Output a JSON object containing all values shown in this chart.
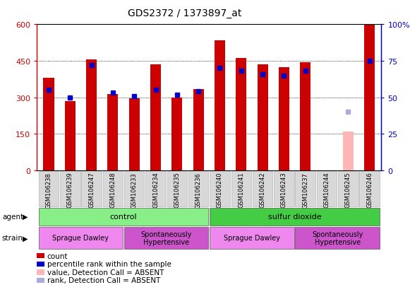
{
  "title": "GDS2372 / 1373897_at",
  "samples": [
    "GSM106238",
    "GSM106239",
    "GSM106247",
    "GSM106248",
    "GSM106233",
    "GSM106234",
    "GSM106235",
    "GSM106236",
    "GSM106240",
    "GSM106241",
    "GSM106242",
    "GSM106243",
    "GSM106237",
    "GSM106244",
    "GSM106245",
    "GSM106246"
  ],
  "count_values": [
    380,
    285,
    455,
    315,
    295,
    435,
    300,
    335,
    535,
    460,
    435,
    425,
    445,
    0,
    160,
    600
  ],
  "count_absent": [
    false,
    false,
    false,
    false,
    false,
    false,
    false,
    false,
    false,
    false,
    false,
    false,
    false,
    true,
    true,
    false
  ],
  "percentile_values": [
    55,
    50,
    72,
    53,
    51,
    55,
    52,
    54,
    70,
    68,
    66,
    65,
    68,
    0,
    40,
    75
  ],
  "percentile_absent": [
    false,
    false,
    false,
    false,
    false,
    false,
    false,
    false,
    false,
    false,
    false,
    false,
    false,
    false,
    true,
    false
  ],
  "count_color": "#CC0000",
  "count_absent_color": "#FFB6B6",
  "percentile_color": "#0000CC",
  "percentile_absent_color": "#AAAADD",
  "ylim_left": [
    0,
    600
  ],
  "ylim_right": [
    0,
    100
  ],
  "yticks_left": [
    0,
    150,
    300,
    450,
    600
  ],
  "yticks_right": [
    0,
    25,
    50,
    75,
    100
  ],
  "yticklabels_left": [
    "0",
    "150",
    "300",
    "450",
    "600"
  ],
  "yticklabels_right": [
    "0",
    "25",
    "50",
    "75",
    "100%"
  ],
  "groups": [
    {
      "label": "control",
      "start": 0,
      "end": 8,
      "color": "#88EE88"
    },
    {
      "label": "sulfur dioxide",
      "start": 8,
      "end": 16,
      "color": "#44CC44"
    }
  ],
  "strains": [
    {
      "label": "Sprague Dawley",
      "start": 0,
      "end": 4,
      "color": "#EE88EE"
    },
    {
      "label": "Spontaneously\nHypertensive",
      "start": 4,
      "end": 8,
      "color": "#CC55CC"
    },
    {
      "label": "Sprague Dawley",
      "start": 8,
      "end": 12,
      "color": "#EE88EE"
    },
    {
      "label": "Spontaneously\nHypertensive",
      "start": 12,
      "end": 16,
      "color": "#CC55CC"
    }
  ],
  "bar_width": 0.5,
  "percentile_marker_size": 5,
  "legend_items": [
    {
      "label": "count",
      "color": "#CC0000"
    },
    {
      "label": "percentile rank within the sample",
      "color": "#0000CC"
    },
    {
      "label": "value, Detection Call = ABSENT",
      "color": "#FFB6B6"
    },
    {
      "label": "rank, Detection Call = ABSENT",
      "color": "#AAAADD"
    }
  ]
}
